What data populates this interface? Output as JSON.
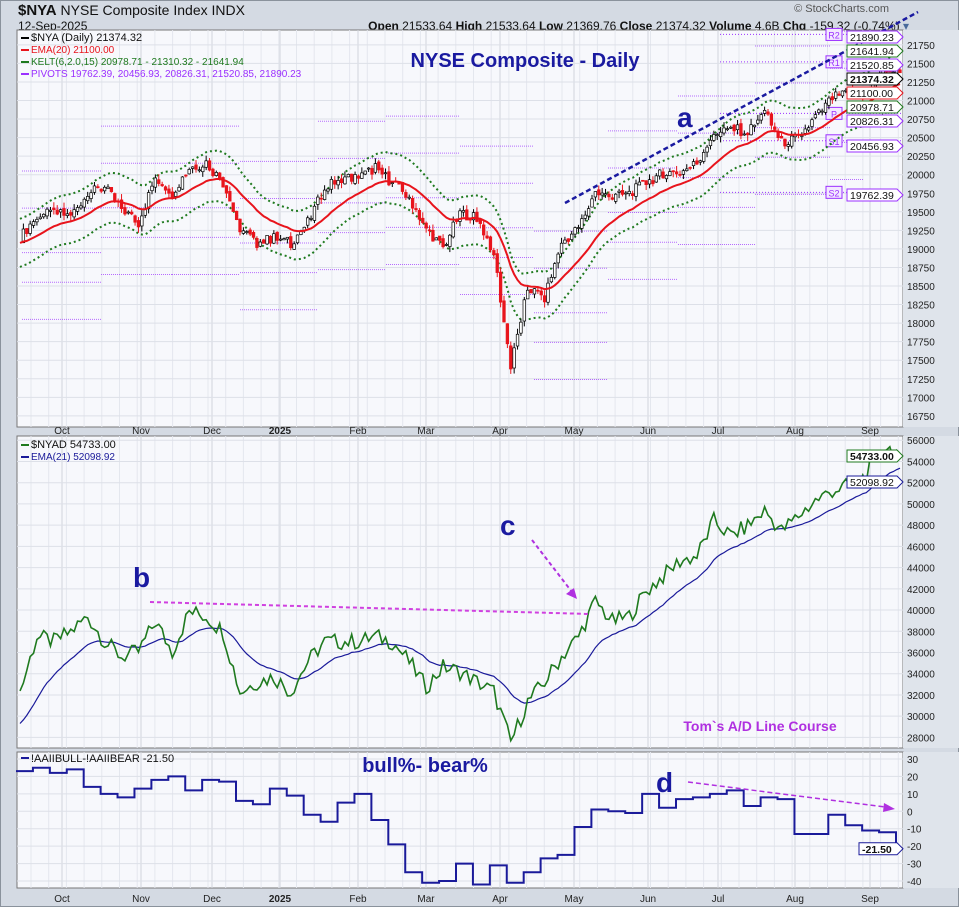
{
  "header": {
    "symbol": "$NYA",
    "name": "NYSE Composite Index",
    "exchange": "INDX",
    "date": "12-Sep-2025",
    "brand": "© StockCharts.com",
    "ohlc": [
      {
        "label": "Open",
        "value": "21533.64"
      },
      {
        "label": "High",
        "value": "21533.64"
      },
      {
        "label": "Low",
        "value": "21369.76"
      },
      {
        "label": "Close",
        "value": "21374.32"
      },
      {
        "label": "Volume",
        "value": "4.6B"
      },
      {
        "label": "Chg",
        "value": "-159.32 (-0.74%)"
      }
    ]
  },
  "colors": {
    "price_up": "#000000",
    "price_down": "#e8141c",
    "ema": "#e8141c",
    "kelt": "#1f7a1f",
    "pivots": "#9b30ff",
    "nyad": "#1f7a1f",
    "nyad_ema": "#1a1a9a",
    "aaii": "#1a1a9a",
    "annot": "#1a1aa0",
    "annot2": "#b030e0"
  },
  "chart_data": [
    {
      "type": "line",
      "title": "NYSE Composite - Daily",
      "legend": [
        "$NYA (Daily) 21374.32",
        "EMA(20) 21100.00",
        "KELT(6,2.0,15) 20978.71 - 21310.32 - 21641.94",
        "PIVOTS 19762.39, 20456.93, 20826.31, 21520.85, 21890.23"
      ],
      "legend_placement": "top-left",
      "x": [
        "2024-09-16",
        "2024-09-23",
        "2024-09-30",
        "2024-10-07",
        "2024-10-14",
        "2024-10-21",
        "2024-10-28",
        "2024-11-04",
        "2024-11-11",
        "2024-11-18",
        "2024-11-25",
        "2024-12-02",
        "2024-12-09",
        "2024-12-16",
        "2024-12-23",
        "2024-12-30",
        "2025-01-06",
        "2025-01-13",
        "2025-01-20",
        "2025-01-27",
        "2025-02-03",
        "2025-02-10",
        "2025-02-17",
        "2025-02-24",
        "2025-03-03",
        "2025-03-10",
        "2025-03-17",
        "2025-03-24",
        "2025-03-31",
        "2025-04-07",
        "2025-04-14",
        "2025-04-21",
        "2025-04-28",
        "2025-05-05",
        "2025-05-12",
        "2025-05-19",
        "2025-05-26",
        "2025-06-02",
        "2025-06-09",
        "2025-06-16",
        "2025-06-23",
        "2025-06-30",
        "2025-07-07",
        "2025-07-14",
        "2025-07-21",
        "2025-07-28",
        "2025-08-04",
        "2025-08-11",
        "2025-08-18",
        "2025-08-25",
        "2025-09-02",
        "2025-09-08",
        "2025-09-12"
      ],
      "series": [
        {
          "name": "$NYA",
          "values": [
            19150,
            19445,
            19485,
            19445,
            19755,
            19820,
            19550,
            19350,
            19960,
            19755,
            20090,
            20160,
            19890,
            19280,
            19080,
            19150,
            19080,
            19350,
            19820,
            19960,
            19960,
            20090,
            19890,
            19690,
            19280,
            19010,
            19485,
            19420,
            18950,
            17400,
            18475,
            18340,
            19080,
            19280,
            19755,
            19690,
            19755,
            19890,
            20025,
            20025,
            20160,
            20565,
            20630,
            20565,
            20835,
            20430,
            20495,
            20765,
            21035,
            21100,
            21100,
            21440,
            21374.32
          ]
        }
      ],
      "ylim": [
        16600,
        21950
      ],
      "yticks": [
        16750,
        17000,
        17250,
        17500,
        17750,
        18000,
        18250,
        18500,
        18750,
        19000,
        19250,
        19500,
        19750,
        20000,
        20250,
        20500,
        20750,
        21000,
        21250,
        21500,
        21750
      ],
      "pivots": {
        "R2": 21890.23,
        "R1": 21520.85,
        "P": 20826.31,
        "S1": 20456.93,
        "S2": 19762.39
      },
      "value_labels": [
        {
          "text": "21890.23",
          "kind": "pivots"
        },
        {
          "text": "21641.94",
          "kind": "kelt"
        },
        {
          "text": "21520.85",
          "kind": "pivots"
        },
        {
          "text": "21374.32",
          "kind": "price"
        },
        {
          "text": "21100.00",
          "kind": "ema"
        },
        {
          "text": "20978.71",
          "kind": "kelt"
        },
        {
          "text": "20826.31",
          "kind": "pivots"
        },
        {
          "text": "20456.93",
          "kind": "pivots"
        },
        {
          "text": "19762.39",
          "kind": "pivots"
        }
      ],
      "annotations": [
        "a"
      ]
    },
    {
      "type": "line",
      "legend": [
        "$NYAD 54733.00",
        "EMA(21) 52098.92"
      ],
      "series": [
        {
          "name": "$NYAD",
          "values": [
            32280,
            37500,
            37020,
            37970,
            39390,
            37020,
            35600,
            36070,
            38920,
            36070,
            39860,
            39390,
            37970,
            32280,
            33220,
            33700,
            32280,
            35120,
            37020,
            37020,
            37020,
            37500,
            37020,
            35120,
            32750,
            34650,
            34170,
            33220,
            32280,
            27530,
            31330,
            33220,
            35600,
            37500,
            40810,
            38920,
            39390,
            41760,
            43180,
            44610,
            45080,
            48410,
            46980,
            47930,
            49360,
            47460,
            48880,
            50300,
            51250,
            51730,
            52680,
            55510,
            54733
          ]
        }
      ],
      "ylim": [
        27000,
        56400
      ],
      "yticks": [
        28000,
        30000,
        32000,
        34000,
        36000,
        38000,
        40000,
        42000,
        44000,
        46000,
        48000,
        50000,
        52000,
        54000,
        56000
      ],
      "value_labels": [
        {
          "text": "54733.00"
        },
        {
          "text": "52098.92"
        }
      ],
      "annotations": [
        "b",
        "c",
        "Tom`s A/D Line Course"
      ]
    },
    {
      "type": "line",
      "title": "bull%- bear%",
      "legend": [
        "!AAIIBULL-!AAIIBEAR -21.50"
      ],
      "series": [
        {
          "name": "!AAIIBULL-!AAIIBEAR",
          "values": [
            23,
            25,
            22,
            24,
            14,
            10,
            8,
            13,
            18,
            20,
            12,
            18,
            17,
            6,
            4,
            13,
            9,
            -2,
            -6,
            5,
            10,
            -5,
            -19,
            -35,
            -41,
            -40,
            -30,
            -42,
            -31,
            -41,
            -35,
            -27,
            -25,
            -9,
            1,
            0,
            -1,
            10,
            2,
            7,
            8,
            10,
            12,
            3,
            8,
            7,
            -13,
            -13,
            -2,
            -8,
            -11,
            -12,
            -21.5
          ]
        }
      ],
      "ylim": [
        -44,
        34
      ],
      "yticks": [
        30,
        20,
        10,
        0,
        -10,
        -20,
        -30,
        -40
      ],
      "value_labels": [
        {
          "text": "-21.50"
        }
      ],
      "annotations": [
        "d"
      ]
    }
  ],
  "months": [
    "Oct",
    "Nov",
    "Dec",
    "2025",
    "Feb",
    "Mar",
    "Apr",
    "May",
    "Jun",
    "Jul",
    "Aug",
    "Sep"
  ]
}
